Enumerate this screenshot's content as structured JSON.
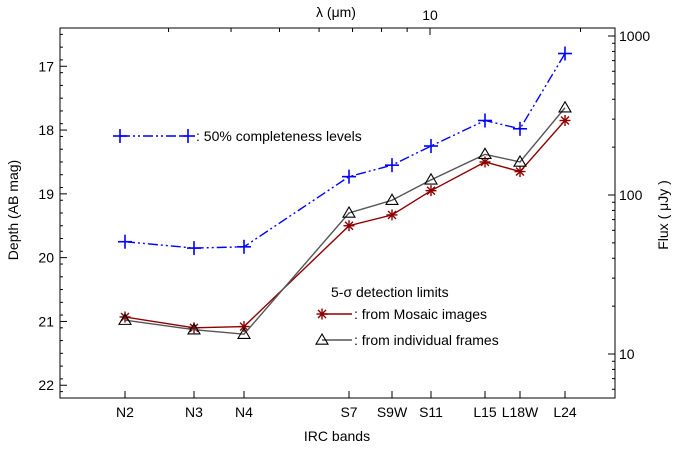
{
  "chart_data": {
    "type": "line",
    "xlabel": "IRC bands",
    "ylabel": "Depth (AB mag)",
    "top_axis_label": "λ (μm)",
    "top_axis_ticks": [
      10
    ],
    "right_axis_label": "Flux ( μJy )",
    "right_axis_ticks": [
      10,
      100,
      1000
    ],
    "ylim": [
      22.2,
      16.4
    ],
    "y_ticks": [
      17,
      18,
      19,
      20,
      21,
      22
    ],
    "categories": [
      "N2",
      "N3",
      "N4",
      "S7",
      "S9W",
      "S11",
      "L15",
      "L18W",
      "L24"
    ],
    "series": [
      {
        "name": ": 50% completeness levels",
        "color": "#0000ff",
        "style": "dash-dot-dot",
        "marker": "plus",
        "values": [
          19.75,
          19.85,
          19.83,
          18.73,
          18.55,
          18.25,
          17.85,
          17.98,
          16.8
        ]
      },
      {
        "name": ": from Mosaic images",
        "color": "#8b0000",
        "style": "solid",
        "marker": "asterisk",
        "values": [
          20.93,
          21.1,
          21.08,
          19.5,
          19.33,
          18.95,
          18.5,
          18.65,
          17.85
        ]
      },
      {
        "name": ": from individual frames",
        "color": "#555555",
        "style": "solid",
        "marker": "triangle",
        "values": [
          20.98,
          21.13,
          21.2,
          19.3,
          19.1,
          18.78,
          18.38,
          18.5,
          17.65
        ]
      }
    ],
    "legend_heading": "5-σ detection limits"
  }
}
